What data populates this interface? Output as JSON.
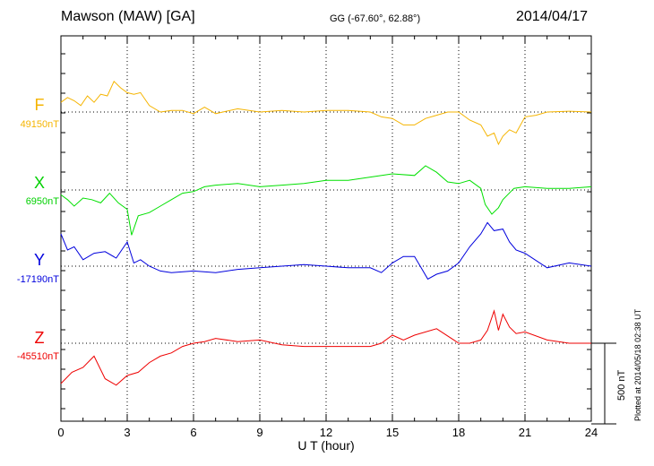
{
  "header": {
    "station": "Mawson (MAW)  [GA]",
    "coords": "GG (-67.60°,  62.88°)",
    "date": "2014/04/17"
  },
  "footer_note": "Plotted at 2014/05/18 02:38 UT",
  "scale_bar": {
    "label": "500 nT",
    "value_nT": 500
  },
  "colors": {
    "F": "#f5b400",
    "X": "#00e000",
    "Y": "#0000dd",
    "Z": "#ee0000"
  },
  "chart_data": {
    "type": "line",
    "title": "",
    "xlabel": "U T (hour)",
    "xlim": [
      0,
      24
    ],
    "x_ticks": [
      "0",
      "3",
      "6",
      "9",
      "12",
      "15",
      "18",
      "21",
      "24"
    ],
    "grid": true,
    "series": [
      {
        "name": "F",
        "baseline_label": "49150nT",
        "x": [
          0,
          0.3,
          0.6,
          0.9,
          1.2,
          1.5,
          1.8,
          2.1,
          2.4,
          2.7,
          3.0,
          3.3,
          3.6,
          4.0,
          4.5,
          5.0,
          5.5,
          6.0,
          6.5,
          7.0,
          8,
          9,
          10,
          11,
          12,
          13,
          14,
          14.5,
          15,
          15.5,
          16,
          16.5,
          17,
          17.5,
          18,
          18.5,
          19,
          19.3,
          19.6,
          19.8,
          20,
          20.3,
          20.6,
          21,
          21.5,
          22,
          23,
          24
        ],
        "y": [
          60,
          90,
          70,
          40,
          100,
          60,
          110,
          100,
          190,
          150,
          120,
          110,
          120,
          40,
          0,
          10,
          10,
          -10,
          30,
          -10,
          20,
          0,
          10,
          0,
          10,
          10,
          0,
          -30,
          -40,
          -80,
          -80,
          -40,
          -20,
          0,
          0,
          -50,
          -80,
          -150,
          -130,
          -200,
          -150,
          -110,
          -130,
          -30,
          -20,
          0,
          5,
          0
        ]
      },
      {
        "name": "X",
        "baseline_label": "6950nT",
        "x": [
          0,
          0.3,
          0.6,
          1.0,
          1.4,
          1.8,
          2.2,
          2.6,
          3.0,
          3.2,
          3.5,
          4.0,
          4.5,
          5.0,
          5.5,
          6.0,
          6.5,
          7,
          8,
          9,
          10,
          11,
          12,
          13,
          14,
          15,
          16,
          16.5,
          17,
          17.5,
          18,
          18.5,
          19,
          19.2,
          19.5,
          19.8,
          20,
          20.5,
          21,
          22,
          23,
          24
        ],
        "y": [
          -30,
          -60,
          -100,
          -50,
          -60,
          -80,
          -20,
          -80,
          -120,
          -280,
          -160,
          -140,
          -100,
          -60,
          -20,
          -10,
          20,
          30,
          40,
          20,
          30,
          40,
          60,
          60,
          80,
          100,
          90,
          150,
          110,
          50,
          40,
          60,
          10,
          -90,
          -150,
          -110,
          -60,
          10,
          20,
          10,
          10,
          20
        ]
      },
      {
        "name": "Y",
        "baseline_label": "-17190nT",
        "x": [
          0,
          0.3,
          0.6,
          1.0,
          1.5,
          2.0,
          2.5,
          3.0,
          3.3,
          3.6,
          4.0,
          4.5,
          5.0,
          6,
          7,
          8,
          9,
          10,
          11,
          12,
          13,
          14,
          14.5,
          15,
          15.5,
          16,
          16.3,
          16.6,
          17,
          17.5,
          18,
          18.5,
          19,
          19.3,
          19.6,
          20,
          20.3,
          20.6,
          21,
          22,
          23,
          24
        ],
        "y": [
          200,
          100,
          120,
          40,
          80,
          90,
          50,
          150,
          20,
          40,
          0,
          -30,
          -40,
          -30,
          -40,
          -20,
          -10,
          0,
          10,
          0,
          -10,
          -10,
          -40,
          20,
          60,
          60,
          -10,
          -80,
          -50,
          -30,
          20,
          120,
          200,
          270,
          220,
          230,
          150,
          100,
          80,
          -10,
          20,
          0
        ]
      },
      {
        "name": "Z",
        "baseline_label": "-45510nT",
        "x": [
          0,
          0.5,
          1.0,
          1.5,
          2.0,
          2.5,
          3.0,
          3.5,
          4.0,
          4.5,
          5.0,
          5.5,
          6.0,
          6.5,
          7,
          8,
          9,
          10,
          11,
          12,
          13,
          14,
          14.5,
          15,
          15.5,
          16,
          17,
          18,
          18.5,
          19,
          19.3,
          19.6,
          19.8,
          20,
          20.3,
          20.6,
          21,
          22,
          23,
          24
        ],
        "y": [
          -250,
          -180,
          -150,
          -80,
          -220,
          -260,
          -200,
          -180,
          -120,
          -80,
          -60,
          -20,
          0,
          10,
          30,
          10,
          20,
          -10,
          -20,
          -20,
          -20,
          -20,
          0,
          50,
          20,
          50,
          90,
          0,
          0,
          20,
          80,
          200,
          80,
          180,
          100,
          60,
          70,
          20,
          0,
          0
        ]
      }
    ]
  }
}
